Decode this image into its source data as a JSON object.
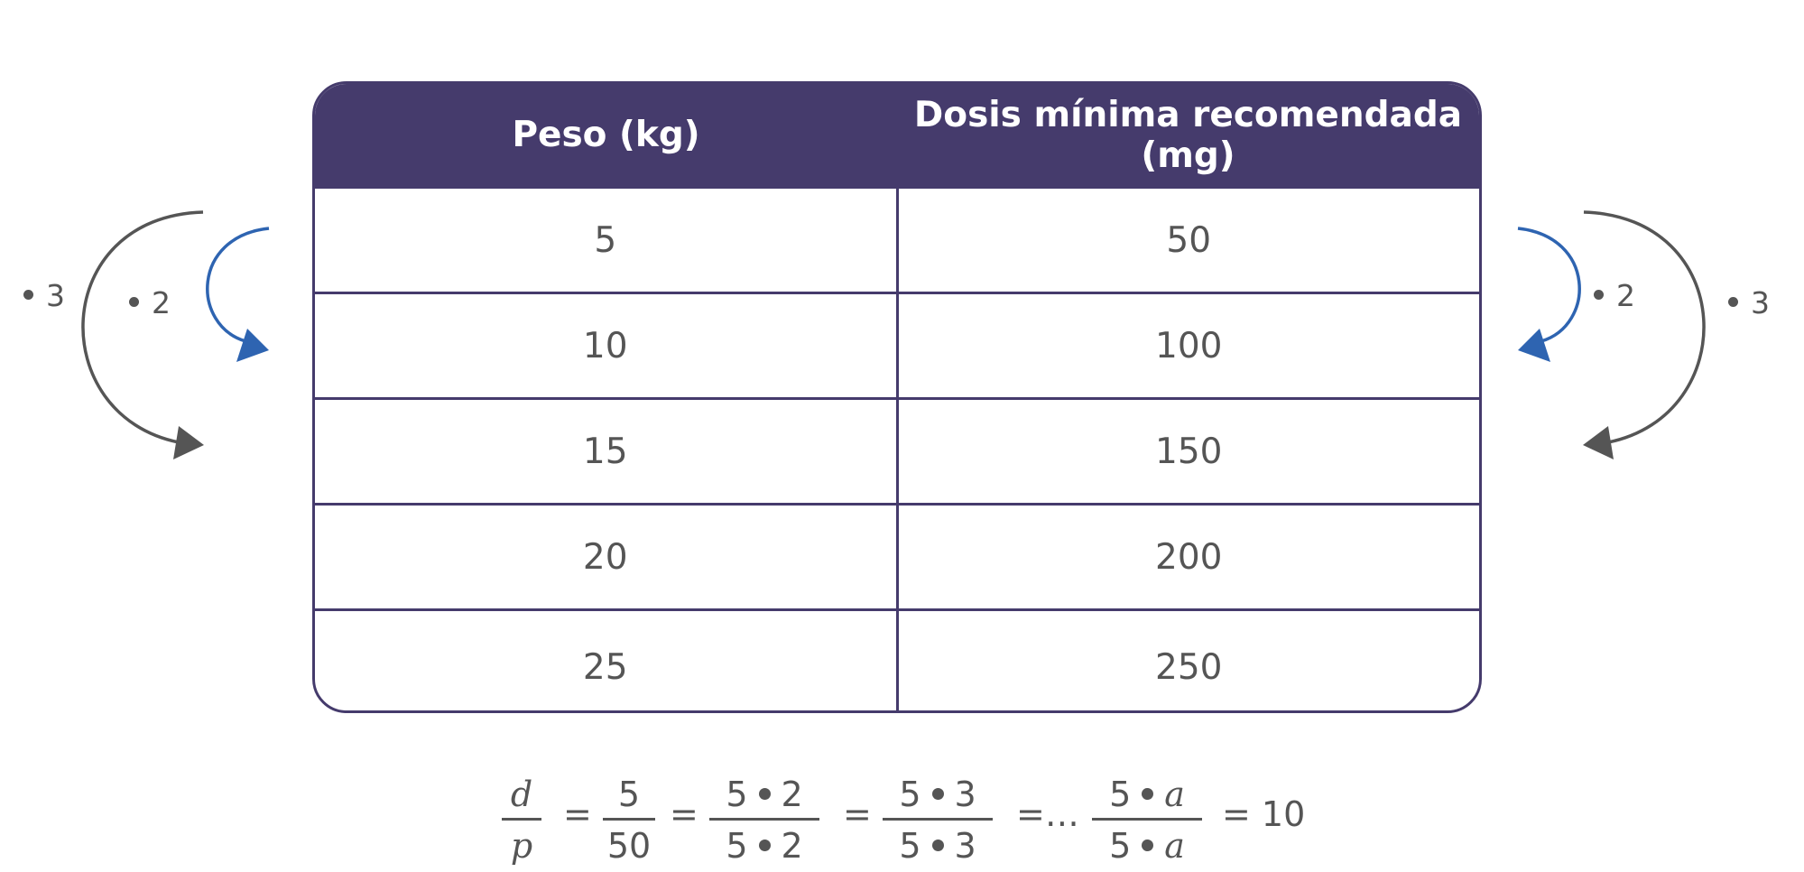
{
  "table": {
    "headers": [
      "Peso (kg)",
      "Dosis mínima recomendada (mg)"
    ],
    "rows": [
      [
        "5",
        "50"
      ],
      [
        "10",
        "100"
      ],
      [
        "15",
        "150"
      ],
      [
        "20",
        "200"
      ],
      [
        "25",
        "250"
      ]
    ]
  },
  "multipliers": {
    "left_outer": "3",
    "left_inner": "2",
    "right_inner": "2",
    "right_outer": "3"
  },
  "formula": {
    "f1": {
      "num": "d",
      "den": "p"
    },
    "f2": {
      "num": "5",
      "den": "50"
    },
    "f3": {
      "num_a": "5",
      "num_b": "2",
      "den_a": "5",
      "den_b": "2"
    },
    "f4": {
      "num_a": "5",
      "num_b": "3",
      "den_a": "5",
      "den_b": "3"
    },
    "f5": {
      "num_a": "5",
      "num_b": "a",
      "den_a": "5",
      "den_b": "a"
    },
    "eq": "=",
    "ellipsis": "=…",
    "result": "= 10"
  },
  "colors": {
    "header_bg": "#453b6c",
    "arrow_gray": "#555555",
    "arrow_blue": "#2e64b1"
  }
}
